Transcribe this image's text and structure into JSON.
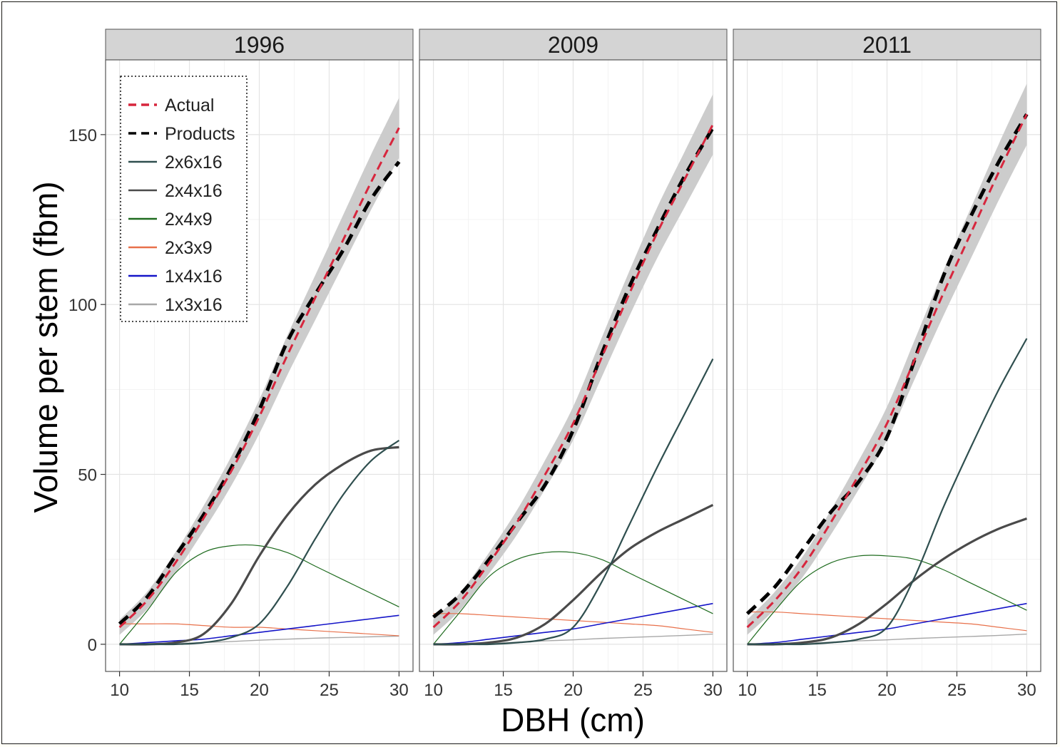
{
  "chart_data": {
    "type": "line",
    "xlabel": "DBH (cm)",
    "ylabel": "Volume per stem (fbm)",
    "xlim": [
      9,
      31
    ],
    "ylim": [
      -8,
      172
    ],
    "xticks": [
      10,
      15,
      20,
      25,
      30
    ],
    "yticks": [
      0,
      50,
      100,
      150
    ],
    "grid": true,
    "legend_placement": "top-left (inside first panel, dotted border)",
    "legend": [
      {
        "name": "Actual",
        "color": "#d7263d",
        "dash": true
      },
      {
        "name": "Products",
        "color": "#000000",
        "dash": true
      },
      {
        "name": "2x6x16",
        "color": "#2f4f4f",
        "dash": false
      },
      {
        "name": "2x4x16",
        "color": "#4a4a4a",
        "dash": false
      },
      {
        "name": "2x4x9",
        "color": "#1e6b1e",
        "dash": false
      },
      {
        "name": "2x3x9",
        "color": "#e8704a",
        "dash": false
      },
      {
        "name": "1x4x16",
        "color": "#1515c8",
        "dash": false
      },
      {
        "name": "1x3x16",
        "color": "#a8a8a8",
        "dash": false
      }
    ],
    "panels": [
      {
        "label": "1996",
        "x": [
          10,
          12,
          14,
          16,
          18,
          20,
          22,
          24,
          26,
          28,
          30
        ],
        "series": [
          {
            "name": "Actual",
            "values": [
              5,
              13,
              24,
              37,
              51,
              67,
              85,
              102,
              119,
              136,
              152
            ]
          },
          {
            "name": "Products",
            "values": [
              6,
              14,
              26,
              38,
              52,
              69,
              89,
              103,
              116,
              131,
              142
            ]
          },
          {
            "name": "2x6x16",
            "values": [
              0,
              0,
              0,
              0.5,
              2,
              6,
              17,
              31,
              44,
              54,
              60
            ]
          },
          {
            "name": "2x4x16",
            "values": [
              0,
              0,
              0.5,
              3,
              12,
              26,
              38,
              47,
              53,
              57,
              58
            ]
          },
          {
            "name": "2x4x9",
            "values": [
              0,
              10,
              21,
              27,
              29,
              29,
              27,
              23,
              19,
              15,
              11
            ]
          },
          {
            "name": "2x3x9",
            "values": [
              6,
              6,
              6,
              5.5,
              5,
              5,
              4.5,
              4,
              3.5,
              3,
              2.5
            ]
          },
          {
            "name": "1x4x16",
            "values": [
              0,
              0.5,
              1,
              1.5,
              2.5,
              3.5,
              4.5,
              5.5,
              6.5,
              7.5,
              8.5
            ]
          },
          {
            "name": "1x3x16",
            "values": [
              0,
              0,
              0.2,
              0.5,
              0.8,
              1.2,
              1.5,
              1.8,
              2,
              2.2,
              2.4
            ]
          }
        ]
      },
      {
        "label": "2009",
        "x": [
          10,
          12,
          14,
          16,
          18,
          20,
          22,
          24,
          26,
          28,
          30
        ],
        "series": [
          {
            "name": "Actual",
            "values": [
              5,
              13,
              24,
              36,
              50,
              65,
              84,
              103,
              121,
              137,
              153
            ]
          },
          {
            "name": "Products",
            "values": [
              8,
              15,
              25,
              36,
              47,
              63,
              85,
              105,
              122,
              138,
              152
            ]
          },
          {
            "name": "2x6x16",
            "values": [
              0,
              0,
              0,
              0.5,
              1.5,
              5,
              18,
              35,
              52,
              68,
              84
            ]
          },
          {
            "name": "2x4x16",
            "values": [
              0,
              0,
              0.5,
              2,
              6,
              13,
              21,
              28,
              33,
              37,
              41
            ]
          },
          {
            "name": "2x4x9",
            "values": [
              0,
              10,
              20,
              25,
              27,
              27,
              25,
              21,
              17,
              13,
              9
            ]
          },
          {
            "name": "2x3x9",
            "values": [
              9,
              9,
              8.5,
              8,
              7.5,
              7,
              6.5,
              6,
              5.5,
              4.5,
              3.5
            ]
          },
          {
            "name": "1x4x16",
            "values": [
              0,
              0.5,
              1.5,
              2.5,
              3.5,
              4.5,
              6,
              7.5,
              9,
              10.5,
              12
            ]
          },
          {
            "name": "1x3x16",
            "values": [
              0,
              0,
              0.3,
              0.6,
              1,
              1.3,
              1.7,
              2,
              2.3,
              2.6,
              3
            ]
          }
        ]
      },
      {
        "label": "2011",
        "x": [
          10,
          12,
          14,
          16,
          18,
          20,
          22,
          24,
          26,
          28,
          30
        ],
        "series": [
          {
            "name": "Actual",
            "values": [
              5,
              13,
              23,
              36,
              50,
              65,
              84,
              103,
              121,
              139,
              156
            ]
          },
          {
            "name": "Products",
            "values": [
              9,
              17,
              28,
              39,
              48,
              61,
              84,
              108,
              126,
              142,
              156
            ]
          },
          {
            "name": "2x6x16",
            "values": [
              0,
              0,
              0,
              0.5,
              1.5,
              5,
              20,
              40,
              58,
              75,
              90
            ]
          },
          {
            "name": "2x4x16",
            "values": [
              0,
              0,
              0.5,
              2,
              6,
              12,
              19,
              25,
              30,
              34,
              37
            ]
          },
          {
            "name": "2x4x9",
            "values": [
              0,
              10,
              19,
              24,
              26,
              26,
              25,
              22,
              18,
              14,
              10
            ]
          },
          {
            "name": "2x3x9",
            "values": [
              9.5,
              9.5,
              9,
              8.5,
              8,
              7.5,
              7,
              6.5,
              6,
              5,
              4
            ]
          },
          {
            "name": "1x4x16",
            "values": [
              0,
              0.5,
              1.5,
              2.5,
              3.5,
              4.5,
              6,
              7.5,
              9,
              10.5,
              12
            ]
          },
          {
            "name": "1x3x16",
            "values": [
              0,
              0,
              0.3,
              0.6,
              1,
              1.3,
              1.7,
              2,
              2.3,
              2.6,
              3
            ]
          }
        ]
      }
    ]
  }
}
